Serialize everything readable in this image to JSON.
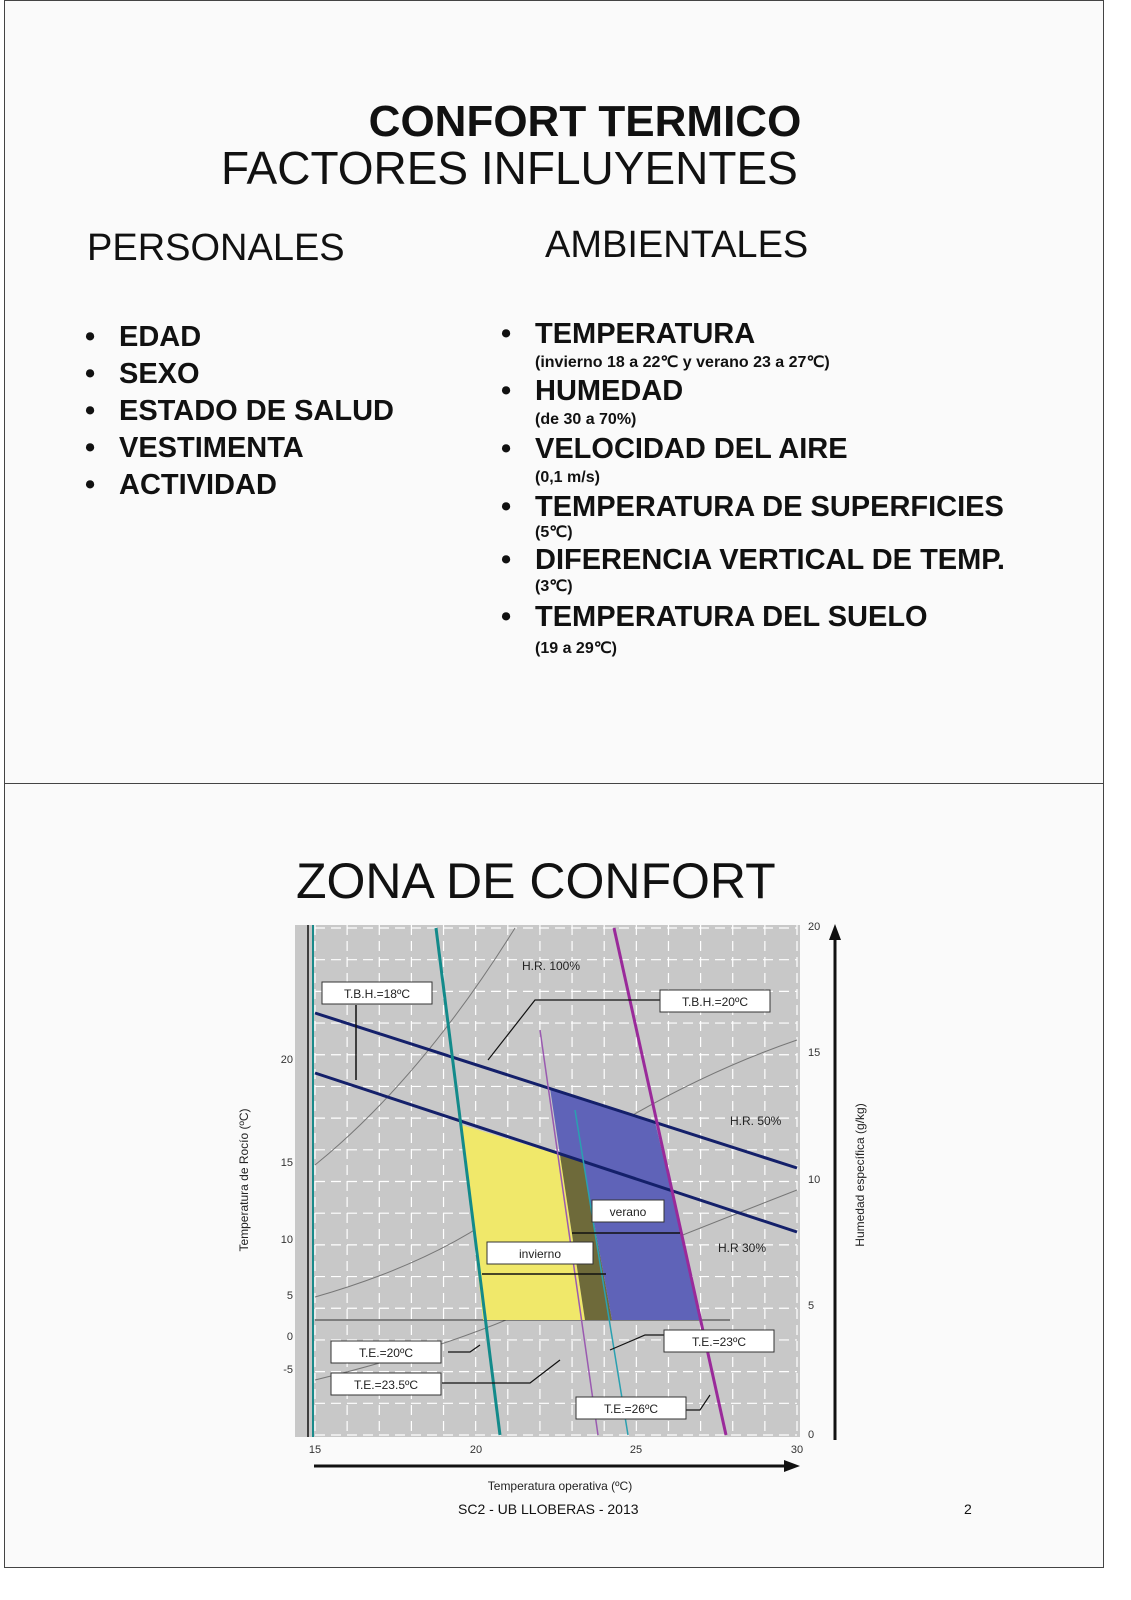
{
  "slide1": {
    "title": "CONFORT  TERMICO",
    "subtitle": "FACTORES INFLUYENTES",
    "personales": {
      "heading": "PERSONALES",
      "items": [
        "EDAD",
        "SEXO",
        "ESTADO DE SALUD",
        "VESTIMENTA",
        "ACTIVIDAD"
      ]
    },
    "ambientales": {
      "heading": "AMBIENTALES",
      "items": [
        {
          "label": "TEMPERATURA",
          "note": "(invierno 18 a 22℃ y verano 23 a 27℃)"
        },
        {
          "label": "HUMEDAD",
          "note": "(de 30 a 70%)"
        },
        {
          "label": "VELOCIDAD DEL AIRE",
          "note": "(0,1 m/s)"
        },
        {
          "label": "TEMPERATURA DE SUPERFICIES",
          "note": "(5℃)"
        },
        {
          "label": "DIFERENCIA VERTICAL DE TEMP.",
          "note": "(3℃)"
        },
        {
          "label": "TEMPERATURA DEL SUELO",
          "note": "(19 a 29℃)"
        }
      ]
    }
  },
  "slide2": {
    "title": "ZONA DE CONFORT",
    "chart": {
      "xlabel": "Temperatura operativa (ºC)",
      "ylabel_left": "Temperatura de Rocío (ºC)",
      "ylabel_right": "Humedad específica (g/kg)",
      "x_ticks": [
        "15",
        "20",
        "25",
        "30"
      ],
      "left_ticks": [
        "20",
        "15",
        "10",
        "5",
        "0",
        "-5"
      ],
      "right_ticks": [
        "20",
        "15",
        "10",
        "5",
        "0"
      ],
      "labels": {
        "tbh18": "T.B.H.=18ºC",
        "tbh20": "T.B.H.=20ºC",
        "hr100": "H.R. 100%",
        "hr50": "H.R. 50%",
        "hr30": "H.R 30%",
        "verano": "verano",
        "invierno": "invierno",
        "te20": "T.E.=20ºC",
        "te235": "T.E.=23.5ºC",
        "te23": "T.E.=23ºC",
        "te26": "T.E.=26ºC"
      },
      "colors": {
        "invierno_zone": "#f0e86a",
        "verano_zone": "#5f63b8",
        "overlap": "#6e6a3a",
        "grid_bg": "#c8c8c8"
      }
    },
    "footer": "SC2 - UB LLOBERAS - 2013",
    "page_number": "2"
  }
}
